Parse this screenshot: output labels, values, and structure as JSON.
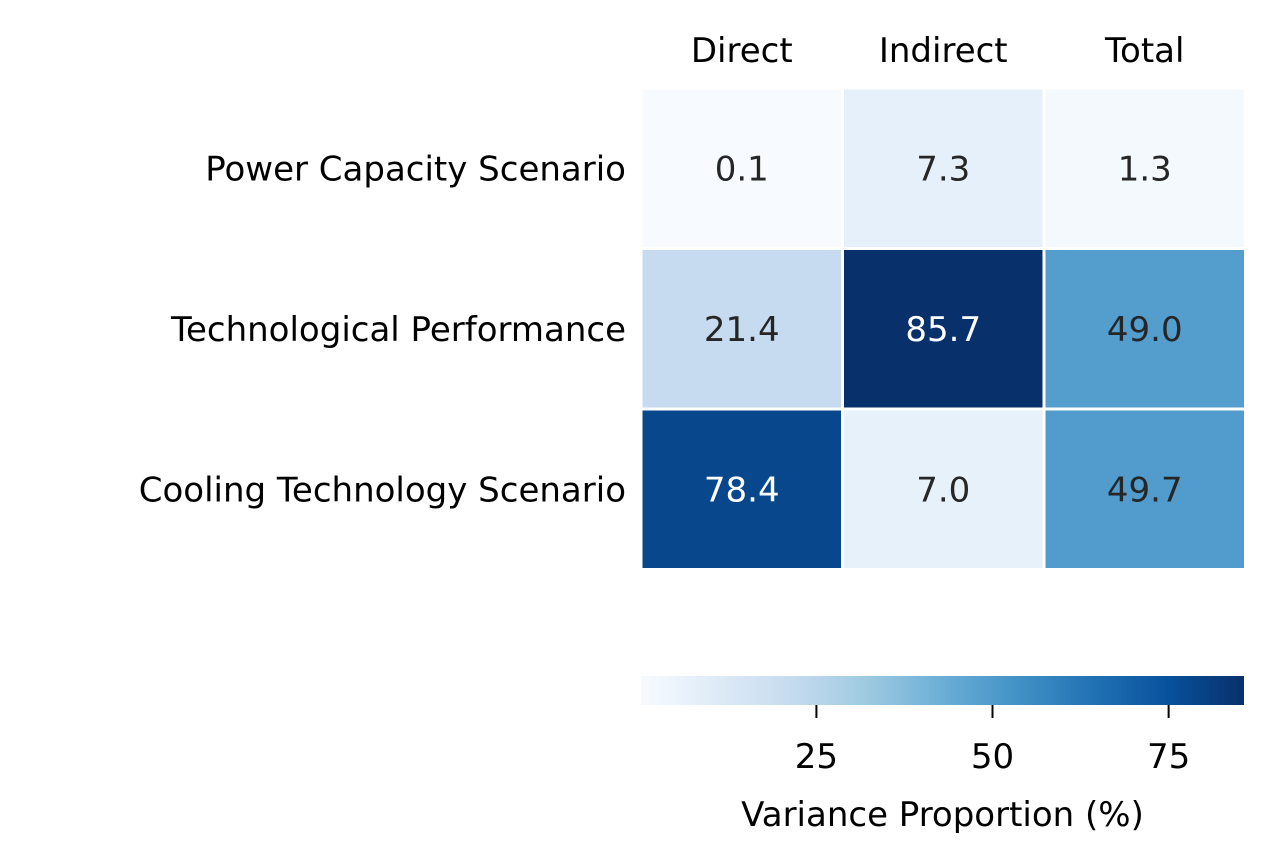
{
  "chart_data": {
    "type": "heatmap",
    "columns": [
      "Direct",
      "Indirect",
      "Total"
    ],
    "rows": [
      "Power Capacity Scenario",
      "Technological Performance",
      "Cooling Technology Scenario"
    ],
    "values": [
      [
        0.1,
        7.3,
        1.3
      ],
      [
        21.4,
        85.7,
        49.0
      ],
      [
        78.4,
        7.0,
        49.7
      ]
    ],
    "value_labels": [
      [
        "0.1",
        "7.3",
        "1.3"
      ],
      [
        "21.4",
        "85.7",
        "49.0"
      ],
      [
        "78.4",
        "7.0",
        "49.7"
      ]
    ],
    "colormap": "Blues",
    "colorbar": {
      "label": "Variance Proportion (%)",
      "range": [
        0.1,
        85.7
      ],
      "ticks": [
        25,
        50,
        75
      ],
      "tick_labels": [
        "25",
        "50",
        "75"
      ],
      "orientation": "horizontal",
      "placement": "bottom"
    },
    "colors": {
      "scale": [
        "#f7fbff",
        "#deebf7",
        "#c6dbef",
        "#9ecae1",
        "#6baed6",
        "#4292c6",
        "#2171b5",
        "#08519c",
        "#08306b"
      ],
      "text_dark": "#262626",
      "text_light": "#ffffff"
    }
  }
}
